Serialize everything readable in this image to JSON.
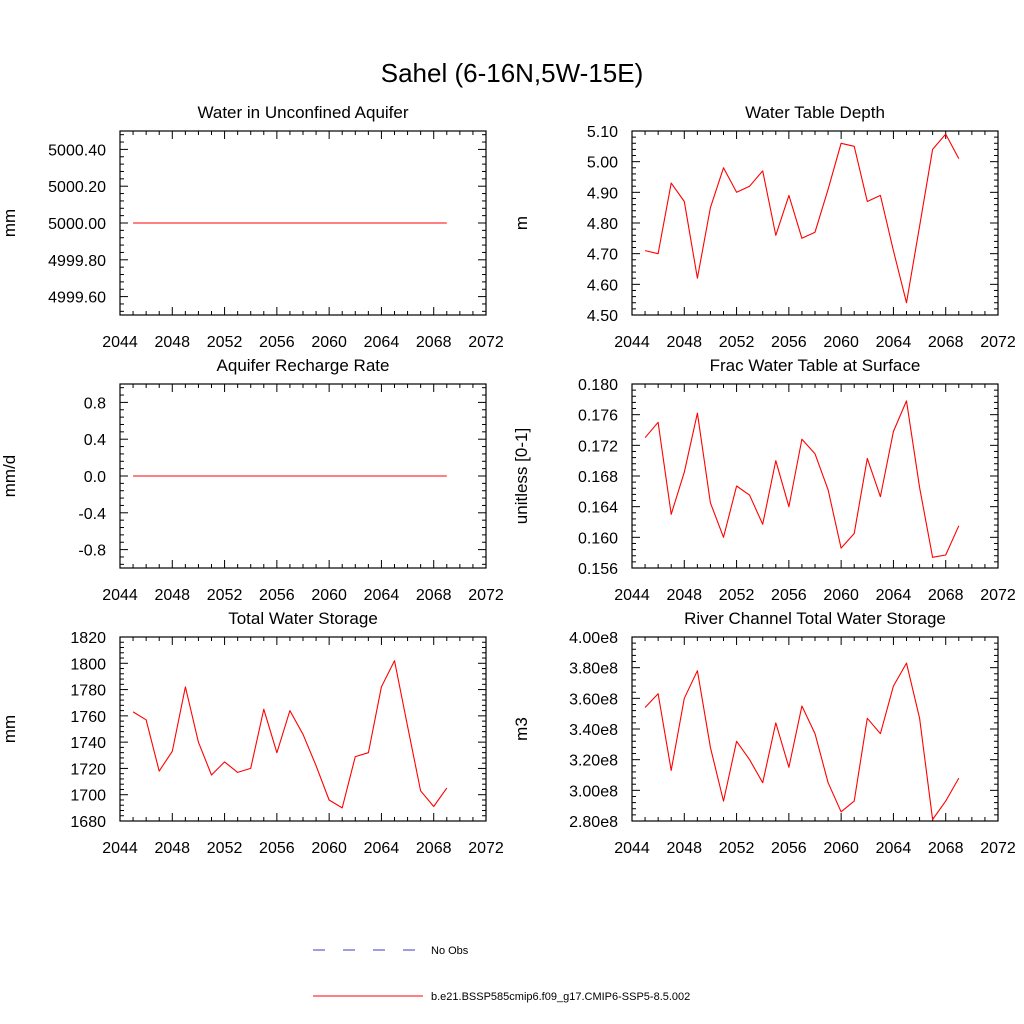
{
  "figure": {
    "title": "Sahel (6-16N,5W-15E)"
  },
  "legend": [
    {
      "label": "No Obs",
      "color": "#3b3bbf",
      "dashed": true
    },
    {
      "label": "b.e21.BSSP585cmip6.f09_g17.CMIP6-SSP5-8.5.002",
      "color": "#ff0000",
      "dashed": false
    }
  ],
  "chart_data": [
    {
      "type": "line",
      "title": "Water in Unconfined Aquifer",
      "ylabel": "mm",
      "xlim": [
        2044,
        2072
      ],
      "xticks": [
        2044,
        2048,
        2052,
        2056,
        2060,
        2064,
        2068,
        2072
      ],
      "xtick_labels": [
        "2044",
        "2048",
        "2052",
        "2056",
        "2060",
        "2064",
        "2068",
        "2072"
      ],
      "ylim": [
        4999.5,
        5000.5
      ],
      "yticks": [
        4999.6,
        4999.8,
        5000.0,
        5000.2,
        5000.4
      ],
      "ytick_labels": [
        "4999.60",
        "4999.80",
        "5000.00",
        "5000.20",
        "5000.40"
      ],
      "series": [
        {
          "name": "b.e21.BSSP585cmip6.f09_g17.CMIP6-SSP5-8.5.002",
          "color": "#ff0000",
          "x": [
            2045,
            2046,
            2047,
            2048,
            2049,
            2050,
            2051,
            2052,
            2053,
            2054,
            2055,
            2056,
            2057,
            2058,
            2059,
            2060,
            2061,
            2062,
            2063,
            2064,
            2065,
            2066,
            2067,
            2068,
            2069
          ],
          "y": [
            5000,
            5000,
            5000,
            5000,
            5000,
            5000,
            5000,
            5000,
            5000,
            5000,
            5000,
            5000,
            5000,
            5000,
            5000,
            5000,
            5000,
            5000,
            5000,
            5000,
            5000,
            5000,
            5000,
            5000,
            5000
          ]
        }
      ]
    },
    {
      "type": "line",
      "title": "Water Table Depth",
      "ylabel": "m",
      "xlim": [
        2044,
        2072
      ],
      "xticks": [
        2044,
        2048,
        2052,
        2056,
        2060,
        2064,
        2068,
        2072
      ],
      "xtick_labels": [
        "2044",
        "2048",
        "2052",
        "2056",
        "2060",
        "2064",
        "2068",
        "2072"
      ],
      "ylim": [
        4.5,
        5.1
      ],
      "yticks": [
        4.5,
        4.6,
        4.7,
        4.8,
        4.9,
        5.0,
        5.1
      ],
      "ytick_labels": [
        "4.50",
        "4.60",
        "4.70",
        "4.80",
        "4.90",
        "5.00",
        "5.10"
      ],
      "series": [
        {
          "name": "b.e21.BSSP585cmip6.f09_g17.CMIP6-SSP5-8.5.002",
          "color": "#ff0000",
          "x": [
            2045,
            2046,
            2047,
            2048,
            2049,
            2050,
            2051,
            2052,
            2053,
            2054,
            2055,
            2056,
            2057,
            2058,
            2059,
            2060,
            2061,
            2062,
            2063,
            2064,
            2065,
            2066,
            2067,
            2068,
            2069
          ],
          "y": [
            4.71,
            4.7,
            4.93,
            4.87,
            4.62,
            4.85,
            4.98,
            4.9,
            4.92,
            4.97,
            4.76,
            4.89,
            4.75,
            4.77,
            4.91,
            5.06,
            5.05,
            4.87,
            4.89,
            4.71,
            4.54,
            4.79,
            5.04,
            5.09,
            5.01
          ]
        }
      ]
    },
    {
      "type": "line",
      "title": "Aquifer Recharge Rate",
      "ylabel": "mm/d",
      "xlim": [
        2044,
        2072
      ],
      "xticks": [
        2044,
        2048,
        2052,
        2056,
        2060,
        2064,
        2068,
        2072
      ],
      "xtick_labels": [
        "2044",
        "2048",
        "2052",
        "2056",
        "2060",
        "2064",
        "2068",
        "2072"
      ],
      "ylim": [
        -1.0,
        1.0
      ],
      "yticks": [
        -0.8,
        -0.4,
        0.0,
        0.4,
        0.8
      ],
      "ytick_labels": [
        "-0.8",
        "-0.4",
        "0.0",
        "0.4",
        "0.8"
      ],
      "series": [
        {
          "name": "b.e21.BSSP585cmip6.f09_g17.CMIP6-SSP5-8.5.002",
          "color": "#ff0000",
          "x": [
            2045,
            2046,
            2047,
            2048,
            2049,
            2050,
            2051,
            2052,
            2053,
            2054,
            2055,
            2056,
            2057,
            2058,
            2059,
            2060,
            2061,
            2062,
            2063,
            2064,
            2065,
            2066,
            2067,
            2068,
            2069
          ],
          "y": [
            0,
            0,
            0,
            0,
            0,
            0,
            0,
            0,
            0,
            0,
            0,
            0,
            0,
            0,
            0,
            0,
            0,
            0,
            0,
            0,
            0,
            0,
            0,
            0,
            0
          ]
        }
      ]
    },
    {
      "type": "line",
      "title": "Frac Water Table at Surface",
      "ylabel": "unitless [0-1]",
      "xlim": [
        2044,
        2072
      ],
      "xticks": [
        2044,
        2048,
        2052,
        2056,
        2060,
        2064,
        2068,
        2072
      ],
      "xtick_labels": [
        "2044",
        "2048",
        "2052",
        "2056",
        "2060",
        "2064",
        "2068",
        "2072"
      ],
      "ylim": [
        0.156,
        0.18
      ],
      "yticks": [
        0.156,
        0.16,
        0.164,
        0.168,
        0.172,
        0.176,
        0.18
      ],
      "ytick_labels": [
        "0.156",
        "0.160",
        "0.164",
        "0.168",
        "0.172",
        "0.176",
        "0.180"
      ],
      "series": [
        {
          "name": "b.e21.BSSP585cmip6.f09_g17.CMIP6-SSP5-8.5.002",
          "color": "#ff0000",
          "x": [
            2045,
            2046,
            2047,
            2048,
            2049,
            2050,
            2051,
            2052,
            2053,
            2054,
            2055,
            2056,
            2057,
            2058,
            2059,
            2060,
            2061,
            2062,
            2063,
            2064,
            2065,
            2066,
            2067,
            2068,
            2069
          ],
          "y": [
            0.173,
            0.175,
            0.163,
            0.1685,
            0.1762,
            0.1645,
            0.16,
            0.1667,
            0.1655,
            0.1617,
            0.17,
            0.164,
            0.1728,
            0.1709,
            0.1662,
            0.1586,
            0.1605,
            0.1703,
            0.1653,
            0.1738,
            0.1778,
            0.1665,
            0.1574,
            0.1577,
            0.1615
          ]
        }
      ]
    },
    {
      "type": "line",
      "title": "Total Water Storage",
      "ylabel": "mm",
      "xlim": [
        2044,
        2072
      ],
      "xticks": [
        2044,
        2048,
        2052,
        2056,
        2060,
        2064,
        2068,
        2072
      ],
      "xtick_labels": [
        "2044",
        "2048",
        "2052",
        "2056",
        "2060",
        "2064",
        "2068",
        "2072"
      ],
      "ylim": [
        1680,
        1820
      ],
      "yticks": [
        1680,
        1700,
        1720,
        1740,
        1760,
        1780,
        1800,
        1820
      ],
      "ytick_labels": [
        "1680",
        "1700",
        "1720",
        "1740",
        "1760",
        "1780",
        "1800",
        "1820"
      ],
      "series": [
        {
          "name": "b.e21.BSSP585cmip6.f09_g17.CMIP6-SSP5-8.5.002",
          "color": "#ff0000",
          "x": [
            2045,
            2046,
            2047,
            2048,
            2049,
            2050,
            2051,
            2052,
            2053,
            2054,
            2055,
            2056,
            2057,
            2058,
            2059,
            2060,
            2061,
            2062,
            2063,
            2064,
            2065,
            2066,
            2067,
            2068,
            2069
          ],
          "y": [
            1763,
            1757,
            1718,
            1733,
            1782,
            1740,
            1715,
            1725,
            1717,
            1720,
            1765,
            1732,
            1764,
            1746,
            1722,
            1696,
            1690,
            1729,
            1732,
            1782,
            1802,
            1752,
            1703,
            1691,
            1705
          ]
        }
      ]
    },
    {
      "type": "line",
      "title": "River Channel Total Water Storage",
      "ylabel": "m3",
      "xlim": [
        2044,
        2072
      ],
      "xticks": [
        2044,
        2048,
        2052,
        2056,
        2060,
        2064,
        2068,
        2072
      ],
      "xtick_labels": [
        "2044",
        "2048",
        "2052",
        "2056",
        "2060",
        "2064",
        "2068",
        "2072"
      ],
      "ylim": [
        280000000,
        400000000
      ],
      "yticks": [
        280000000,
        300000000,
        320000000,
        340000000,
        360000000,
        380000000,
        400000000
      ],
      "ytick_labels": [
        "2.80e8",
        "3.00e8",
        "3.20e8",
        "3.40e8",
        "3.60e8",
        "3.80e8",
        "4.00e8"
      ],
      "series": [
        {
          "name": "b.e21.BSSP585cmip6.f09_g17.CMIP6-SSP5-8.5.002",
          "color": "#ff0000",
          "x": [
            2045,
            2046,
            2047,
            2048,
            2049,
            2050,
            2051,
            2052,
            2053,
            2054,
            2055,
            2056,
            2057,
            2058,
            2059,
            2060,
            2061,
            2062,
            2063,
            2064,
            2065,
            2066,
            2067,
            2068,
            2069
          ],
          "y": [
            354000000,
            363000000,
            313000000,
            360000000,
            378000000,
            328000000,
            293000000,
            332000000,
            320000000,
            305000000,
            344000000,
            315000000,
            355000000,
            337000000,
            305000000,
            286000000,
            293000000,
            347000000,
            337000000,
            368000000,
            383000000,
            347000000,
            281000000,
            293000000,
            308000000
          ]
        }
      ]
    }
  ]
}
